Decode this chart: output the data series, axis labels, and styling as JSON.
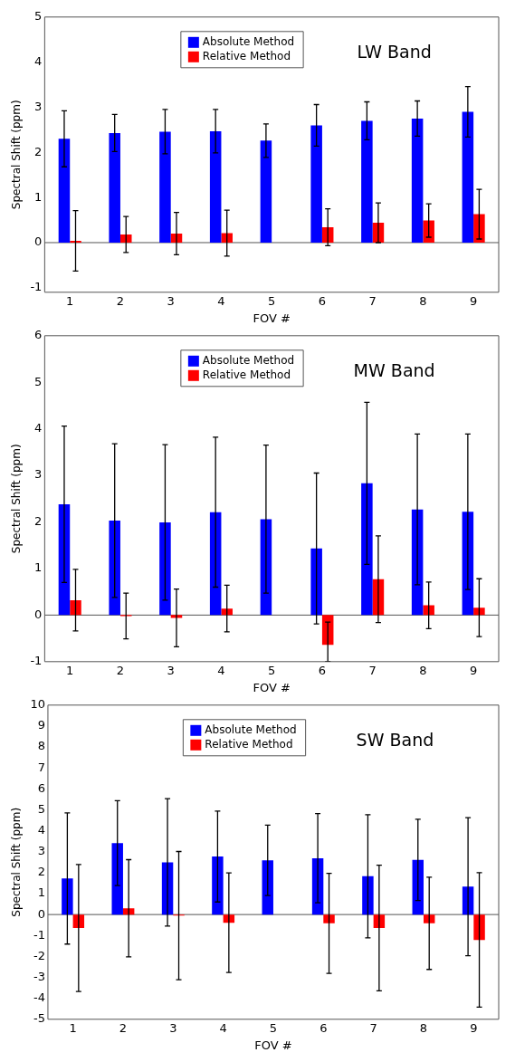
{
  "chart_data": [
    {
      "type": "bar",
      "title": "LW Band",
      "xlabel": "FOV #",
      "ylabel": "Spectral Shift (ppm)",
      "legend": "top",
      "categories": [
        "1",
        "2",
        "3",
        "4",
        "5",
        "6",
        "7",
        "8",
        "9"
      ],
      "series": [
        {
          "name": "Absolute Method",
          "color": "#0000ff",
          "values": [
            2.3,
            2.43,
            2.46,
            2.47,
            2.26,
            2.6,
            2.7,
            2.75,
            2.9
          ],
          "errors": [
            0.62,
            0.41,
            0.49,
            0.48,
            0.37,
            0.46,
            0.42,
            0.39,
            0.56
          ]
        },
        {
          "name": "Relative Method",
          "color": "#ff0000",
          "values": [
            0.04,
            0.18,
            0.2,
            0.21,
            0,
            0.34,
            0.44,
            0.49,
            0.63
          ],
          "errors": [
            0.67,
            0.4,
            0.47,
            0.51,
            null,
            0.41,
            0.44,
            0.37,
            0.55
          ]
        }
      ],
      "ylim": [
        -1.1,
        5
      ],
      "yticks": [
        -1,
        0,
        1,
        2,
        3,
        4,
        5
      ],
      "ref_lines": [
        {
          "axis": "y",
          "value": 0,
          "color": "#555555"
        }
      ]
    },
    {
      "type": "bar",
      "title": "MW Band",
      "xlabel": "FOV #",
      "ylabel": "Spectral Shift (ppm)",
      "legend": "top",
      "categories": [
        "1",
        "2",
        "3",
        "4",
        "5",
        "6",
        "7",
        "8",
        "9"
      ],
      "series": [
        {
          "name": "Absolute Method",
          "color": "#0000ff",
          "values": [
            2.38,
            2.03,
            1.99,
            2.21,
            2.06,
            1.43,
            2.83,
            2.27,
            2.22
          ],
          "errors": [
            1.68,
            1.65,
            1.67,
            1.61,
            1.59,
            1.62,
            1.74,
            1.62,
            1.67
          ]
        },
        {
          "name": "Relative Method",
          "color": "#ff0000",
          "values": [
            0.32,
            -0.02,
            -0.06,
            0.14,
            0,
            -0.64,
            0.77,
            0.21,
            0.16
          ],
          "errors": [
            0.66,
            0.49,
            0.62,
            0.5,
            null,
            [
              -1,
              -0.15
            ],
            0.93,
            0.5,
            0.62
          ]
        }
      ],
      "ylim": [
        -1,
        6
      ],
      "yticks": [
        -1,
        0,
        1,
        2,
        3,
        4,
        5,
        6
      ],
      "ref_lines": [
        {
          "axis": "y",
          "value": 0,
          "color": "#555555"
        }
      ]
    },
    {
      "type": "bar",
      "title": "SW Band",
      "xlabel": "FOV #",
      "ylabel": "Spectral Shift (ppm)",
      "legend": "top",
      "categories": [
        "1",
        "2",
        "3",
        "4",
        "5",
        "6",
        "7",
        "8",
        "9"
      ],
      "series": [
        {
          "name": "Absolute Method",
          "color": "#0000ff",
          "values": [
            1.72,
            3.41,
            2.49,
            2.77,
            2.59,
            2.69,
            1.83,
            2.61,
            1.33
          ],
          "errors": [
            3.13,
            2.03,
            3.04,
            2.17,
            1.68,
            2.13,
            2.94,
            1.94,
            3.3
          ]
        },
        {
          "name": "Relative Method",
          "color": "#ff0000",
          "values": [
            -0.64,
            0.3,
            -0.05,
            -0.39,
            0,
            -0.42,
            -0.64,
            -0.42,
            -1.21
          ],
          "errors": [
            3.03,
            2.32,
            3.06,
            2.38,
            null,
            2.39,
            3.0,
            2.2,
            3.21
          ]
        }
      ],
      "ylim": [
        -5,
        10
      ],
      "yticks": [
        -5,
        -4,
        -3,
        -2,
        -1,
        0,
        1,
        2,
        3,
        4,
        5,
        6,
        7,
        8,
        9,
        10
      ],
      "ref_lines": [
        {
          "axis": "y",
          "value": 0,
          "color": "#555555"
        }
      ]
    }
  ]
}
